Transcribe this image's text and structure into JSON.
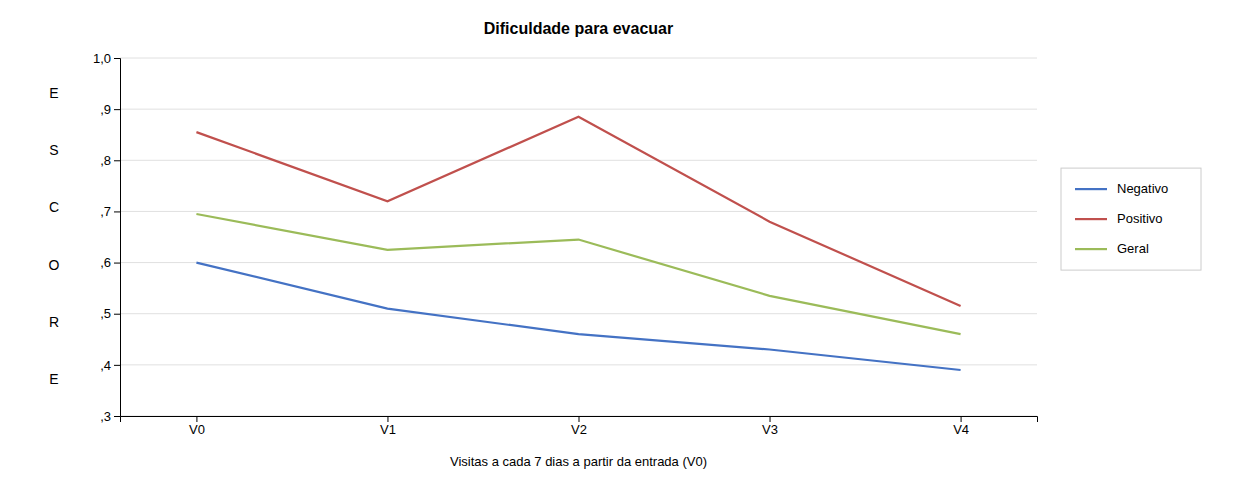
{
  "chart_data": {
    "type": "line",
    "title": "Dificuldade para evacuar",
    "x_label": "Visitas a cada 7 dias a partir da entrada (V0)",
    "y_label": "ESCORE",
    "categories": [
      "V0",
      "V1",
      "V2",
      "V3",
      "V4"
    ],
    "series": [
      {
        "name": "Negativo",
        "color": "#4472C4",
        "values": [
          0.6,
          0.51,
          0.46,
          0.43,
          0.39
        ]
      },
      {
        "name": "Positivo",
        "color": "#C0504D",
        "values": [
          0.855,
          0.72,
          0.885,
          0.68,
          0.515
        ]
      },
      {
        "name": "Geral",
        "color": "#9BBB59",
        "values": [
          0.695,
          0.625,
          0.645,
          0.535,
          0.46
        ]
      }
    ],
    "ylim": [
      0.3,
      1.0
    ],
    "yticks": [
      {
        "value": 0.3,
        "label": ",3"
      },
      {
        "value": 0.4,
        "label": ",4"
      },
      {
        "value": 0.5,
        "label": ",5"
      },
      {
        "value": 0.6,
        "label": ",6"
      },
      {
        "value": 0.7,
        "label": ",7"
      },
      {
        "value": 0.8,
        "label": ",8"
      },
      {
        "value": 0.9,
        "label": ",9"
      },
      {
        "value": 1.0,
        "label": "1,0"
      }
    ],
    "grid": true,
    "legend": "right"
  }
}
